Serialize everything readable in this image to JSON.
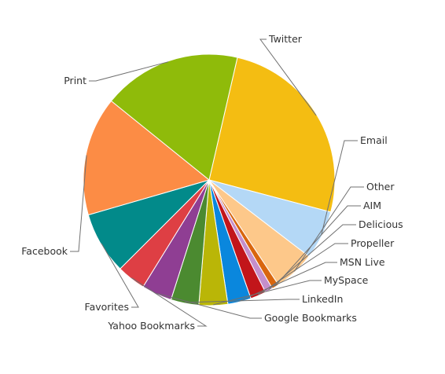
{
  "chart_data": {
    "type": "pie",
    "title": "",
    "legend": "none",
    "colors_note": "slice colors listed in order",
    "slices": [
      {
        "label": "Twitter",
        "value": 25.5,
        "color": "#F4BD12"
      },
      {
        "label": "Email",
        "value": 6.3,
        "color": "#B4D8F6"
      },
      {
        "label": "Other",
        "value": 5.3,
        "color": "#FDC88A"
      },
      {
        "label": "AIM",
        "value": 0.9,
        "color": "#D9660E"
      },
      {
        "label": "Delicious",
        "value": 1.0,
        "color": "#C58FCB"
      },
      {
        "label": "Propeller",
        "value": 2.0,
        "color": "#C2151A"
      },
      {
        "label": "MSN Live",
        "value": 3.0,
        "color": "#0A87DD"
      },
      {
        "label": "MySpace",
        "value": 3.7,
        "color": "#BAB607"
      },
      {
        "label": "LinkedIn",
        "value": 3.6,
        "color": "#4B8A30"
      },
      {
        "label": "Google Bookmarks",
        "value": 3.9,
        "color": "#8F3E93"
      },
      {
        "label": "Yahoo Bookmarks",
        "value": 3.7,
        "color": "#DE3F44"
      },
      {
        "label": "Favorites",
        "value": 8.0,
        "color": "#028A8A"
      },
      {
        "label": "Facebook",
        "value": 15.3,
        "color": "#FC8C45"
      },
      {
        "label": "Print",
        "value": 17.8,
        "color": "#8FBB0A"
      }
    ]
  }
}
